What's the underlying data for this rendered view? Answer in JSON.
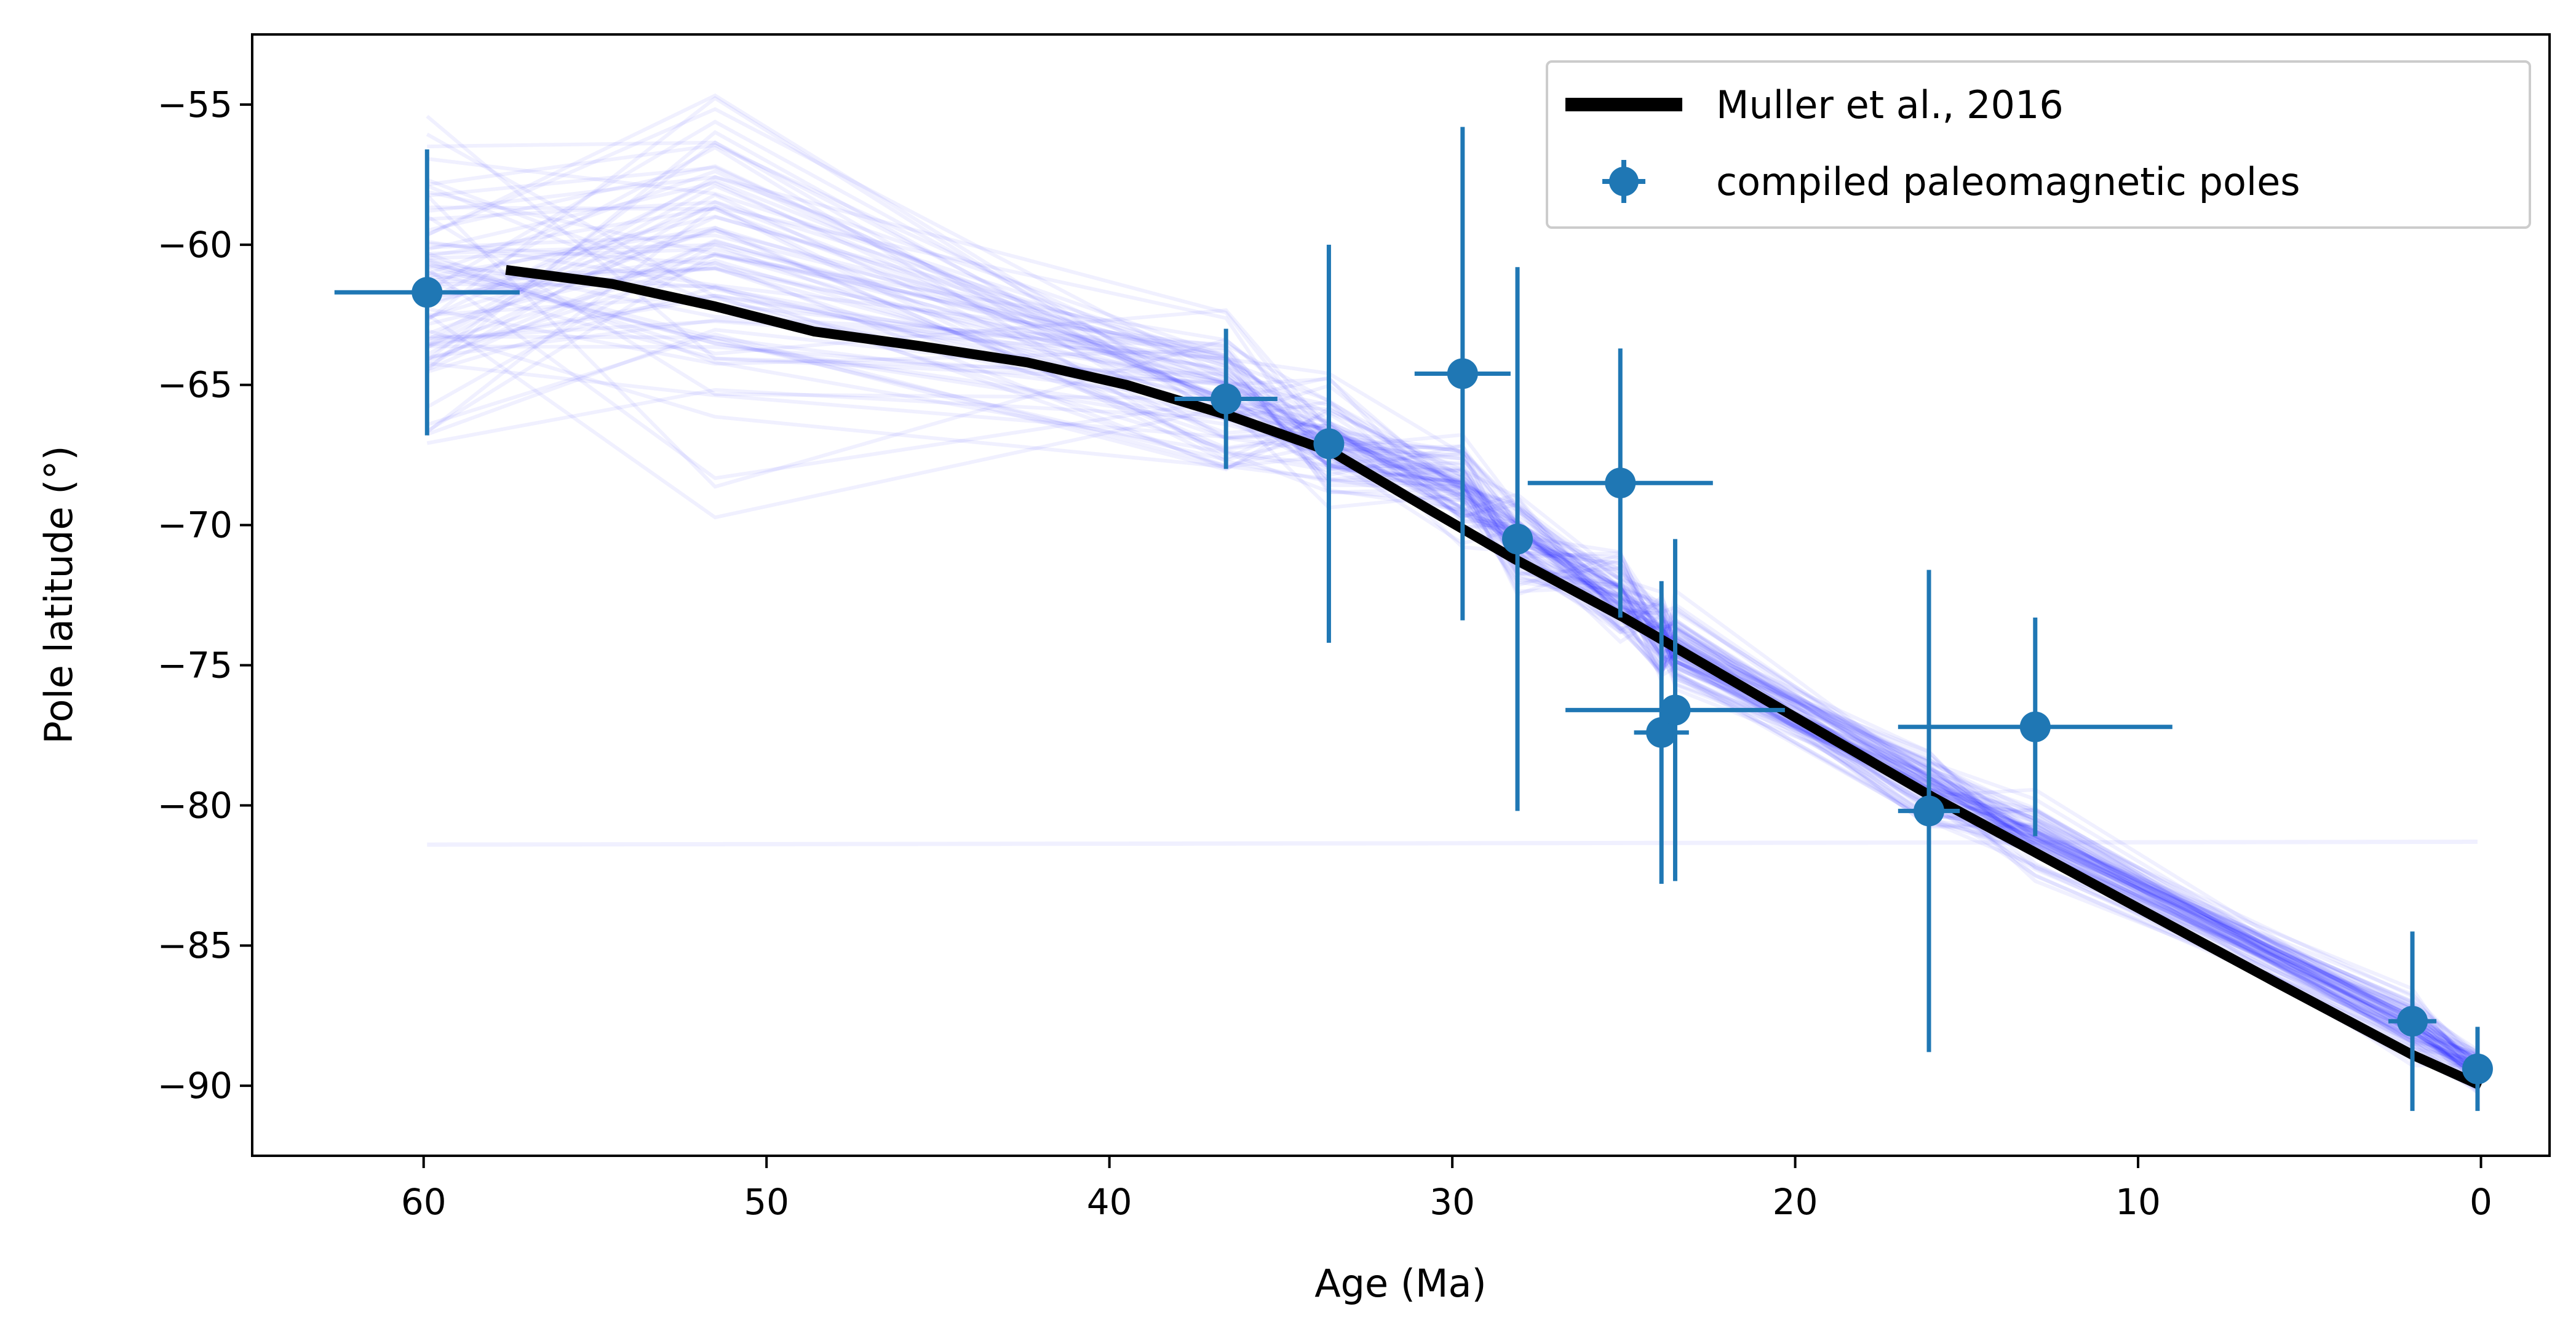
{
  "chart_data": {
    "type": "scatter",
    "title": "",
    "xlabel": "Age (Ma)",
    "ylabel": "Pole latitude (°)",
    "xlim": [
      65,
      -2
    ],
    "ylim": [
      -92.5,
      -52.5
    ],
    "x_ticks": [
      60,
      50,
      40,
      30,
      20,
      10,
      0
    ],
    "y_ticks": [
      -55,
      -60,
      -65,
      -70,
      -75,
      -80,
      -85,
      -90
    ],
    "x_tick_labels": [
      "60",
      "50",
      "40",
      "30",
      "20",
      "10",
      "0"
    ],
    "y_tick_labels": [
      "−55",
      "−60",
      "−65",
      "−70",
      "−75",
      "−80",
      "−85",
      "−90"
    ],
    "grid": false,
    "legend_position": "upper right",
    "colors": {
      "model": "#000000",
      "poles": "#1f77b4",
      "ensemble": "#0000ff"
    },
    "model_line": {
      "name": "Muller et al., 2016",
      "x": [
        57.6,
        54.5,
        51.5,
        48.6,
        45.6,
        42.4,
        39.5,
        36.5,
        33.5,
        30.6,
        28.2,
        25.0,
        20.5,
        16.0,
        11.0,
        6.0,
        2.0,
        0.0
      ],
      "y": [
        -60.9,
        -61.4,
        -62.2,
        -63.1,
        -63.6,
        -64.2,
        -65.0,
        -66.1,
        -67.4,
        -69.5,
        -71.2,
        -73.3,
        -76.5,
        -79.7,
        -83.0,
        -86.3,
        -88.9,
        -90.0
      ]
    },
    "poles": {
      "name": "compiled paleomagnetic poles",
      "points": [
        {
          "age": 59.9,
          "lat": -61.7,
          "age_err": 2.7,
          "lat_err": 5.1
        },
        {
          "age": 36.6,
          "lat": -65.5,
          "age_err": 1.5,
          "lat_err": 2.5
        },
        {
          "age": 33.6,
          "lat": -67.1,
          "age_err": 0.0,
          "lat_err": 7.1
        },
        {
          "age": 29.7,
          "lat": -64.6,
          "age_err": 1.4,
          "lat_err": 8.8
        },
        {
          "age": 28.1,
          "lat": -70.5,
          "age_err": 0.0,
          "lat_err": 9.7
        },
        {
          "age": 25.1,
          "lat": -68.5,
          "age_err": 2.7,
          "lat_err": 4.8
        },
        {
          "age": 23.9,
          "lat": -77.4,
          "age_err": 0.8,
          "lat_err": 5.4
        },
        {
          "age": 23.5,
          "lat": -76.6,
          "age_err": 3.2,
          "lat_err": 6.1
        },
        {
          "age": 16.1,
          "lat": -80.2,
          "age_err": 0.9,
          "lat_err": 8.6
        },
        {
          "age": 13.0,
          "lat": -77.2,
          "age_err": 4.0,
          "lat_err": 3.9
        },
        {
          "age": 2.0,
          "lat": -87.7,
          "age_err": 0.7,
          "lat_err": 3.2
        },
        {
          "age": 0.1,
          "lat": -89.4,
          "age_err": 0.0,
          "lat_err": 1.5
        }
      ]
    },
    "ensemble": {
      "description_shown": "",
      "count": 80,
      "ages": [
        59.9,
        51.5,
        36.6,
        33.6,
        29.7,
        28.1,
        25.1,
        23.9,
        23.5,
        16.1,
        13.0,
        2.0,
        0.1
      ],
      "center": [
        -61.7,
        -60.8,
        -65.5,
        -67.1,
        -68.8,
        -70.5,
        -72.6,
        -73.9,
        -74.3,
        -79.4,
        -81.2,
        -87.9,
        -89.4
      ],
      "spread": [
        2.2,
        3.0,
        1.4,
        1.0,
        0.9,
        0.8,
        0.7,
        0.7,
        0.7,
        0.6,
        0.6,
        0.5,
        0.4
      ],
      "outlier_line": {
        "x": [
          59.9,
          0.1
        ],
        "y": [
          -81.4,
          -81.3
        ]
      }
    }
  }
}
